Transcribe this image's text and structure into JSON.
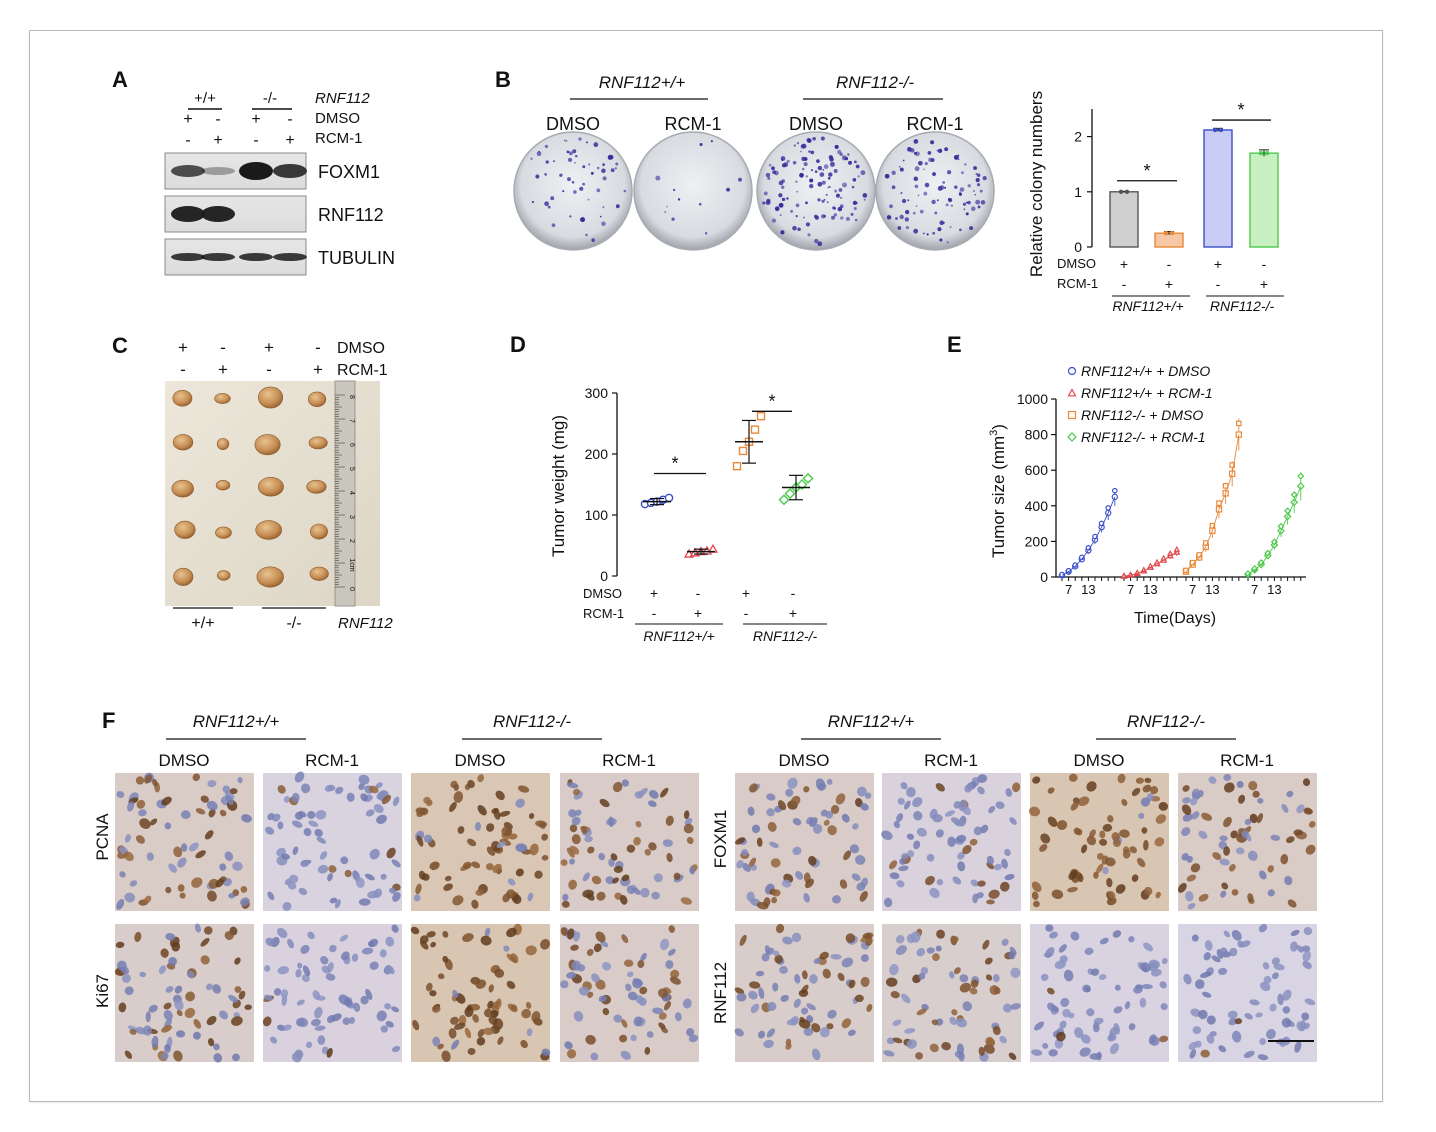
{
  "panel_letters": {
    "A": "A",
    "B": "B",
    "C": "C",
    "D": "D",
    "E": "E",
    "F": "F"
  },
  "colors": {
    "dmso_wt": "#3b4fc8",
    "rcm_wt": "#e0474c",
    "dmso_ko": "#e8893a",
    "rcm_ko": "#4cc94a",
    "bar_dmso_wt": "#cfcfcf",
    "bar_rcm_wt": "#f7c8a6",
    "bar_dmso_ko": "#c9ccf5",
    "bar_rcm_ko": "#c8f0c0",
    "colony_stain": "#3a2c9c",
    "tissue_brown": "#8a5a34",
    "tissue_blue": "#9ea6cf"
  },
  "panelA": {
    "genotype_wt": "+/+",
    "genotype_ko": "-/-",
    "gene_label": "RNF112",
    "dmso_label": "DMSO",
    "rcm_label": "RCM-1",
    "dmso_signs": [
      "+",
      "-",
      "+",
      "-"
    ],
    "rcm_signs": [
      "-",
      "+",
      "-",
      "+"
    ],
    "blot_labels": [
      "FOXM1",
      "RNF112",
      "TUBULIN"
    ]
  },
  "panelB": {
    "group_wt": "RNF112+/+",
    "group_ko": "RNF112-/-",
    "plate_labels": [
      "DMSO",
      "RCM-1",
      "DMSO",
      "RCM-1"
    ],
    "xrow_labels": [
      "DMSO",
      "RCM-1"
    ],
    "dmso_signs": [
      "+",
      "-",
      "+",
      "-"
    ],
    "rcm_signs": [
      "-",
      "+",
      "-",
      "+"
    ],
    "sig": "*",
    "ytick_labels": [
      "0",
      "1",
      "2"
    ]
  },
  "panelC": {
    "dmso_label": "DMSO",
    "rcm_label": "RCM-1",
    "dmso_signs": [
      "+",
      "-",
      "+",
      "-"
    ],
    "rcm_signs": [
      "-",
      "+",
      "-",
      "+"
    ],
    "genotype_wt": "+/+",
    "genotype_ko": "-/-",
    "gene_label": "RNF112",
    "ruler_labels": [
      "8",
      "7",
      "6",
      "5",
      "4",
      "3",
      "2",
      "1cm",
      "0"
    ]
  },
  "panelD": {
    "xrow_labels": [
      "DMSO",
      "RCM-1"
    ],
    "dmso_signs": [
      "+",
      "-",
      "+",
      "-"
    ],
    "rcm_signs": [
      "-",
      "+",
      "-",
      "+"
    ],
    "group_wt": "RNF112+/+",
    "group_ko": "RNF112-/-",
    "sig": "*",
    "ytick_labels": [
      "0",
      "100",
      "200",
      "300"
    ]
  },
  "panelE": {
    "legend": [
      "RNF112+/+ + DMSO",
      "RNF112+/+ + RCM-1",
      "RNF112-/- + DMSO",
      "RNF112-/- + RCM-1"
    ],
    "ytick_labels": [
      "0",
      "200",
      "400",
      "600",
      "800",
      "1000"
    ],
    "xtick_labels": [
      "7",
      "13",
      "7",
      "13",
      "7",
      "13",
      "7",
      "13"
    ]
  },
  "panelF": {
    "groups": [
      "RNF112+/+",
      "RNF112-/-",
      "RNF112+/+",
      "RNF112-/-"
    ],
    "columns": [
      "DMSO",
      "RCM-1",
      "DMSO",
      "RCM-1",
      "DMSO",
      "RCM-1",
      "DMSO",
      "RCM-1"
    ],
    "row_labels": [
      "PCNA",
      "Ki67",
      "FOXM1",
      "RNF112"
    ],
    "stain_intensity": {
      "PCNA": [
        0.55,
        0.08,
        0.85,
        0.5
      ],
      "Ki67": [
        0.45,
        0.1,
        0.9,
        0.5
      ],
      "FOXM1": [
        0.5,
        0.15,
        0.9,
        0.55
      ],
      "RNF112": [
        0.45,
        0.4,
        0.05,
        0.02
      ]
    }
  },
  "chart_data": [
    {
      "type": "bar",
      "panel": "B",
      "xlabel": "",
      "ylabel": "Relative colony numbers",
      "ylim": [
        0,
        2.5
      ],
      "categories": [
        "RNF112+/+ DMSO",
        "RNF112+/+ RCM-1",
        "RNF112-/- DMSO",
        "RNF112-/- RCM-1"
      ],
      "values": [
        1.0,
        0.25,
        2.12,
        1.7
      ],
      "errors": [
        0.01,
        0.03,
        0.03,
        0.06
      ],
      "annotations": [
        {
          "text": "*",
          "between": [
            0,
            1
          ]
        },
        {
          "text": "*",
          "between": [
            2,
            3
          ]
        }
      ]
    },
    {
      "type": "scatter",
      "panel": "D",
      "xlabel": "",
      "ylabel": "Tumor weight (mg)",
      "ylim": [
        0,
        300
      ],
      "categories": [
        "RNF112+/+ DMSO",
        "RNF112+/+ RCM-1",
        "RNF112-/- DMSO",
        "RNF112-/- RCM-1"
      ],
      "points": [
        [
          118,
          120,
          122,
          125,
          128
        ],
        [
          36,
          38,
          40,
          41,
          44
        ],
        [
          180,
          205,
          220,
          240,
          262
        ],
        [
          125,
          135,
          145,
          150,
          160
        ]
      ],
      "means": [
        122,
        40,
        220,
        145
      ],
      "sd": [
        5,
        4,
        35,
        20
      ],
      "annotations": [
        {
          "text": "*",
          "between": [
            0,
            1
          ]
        },
        {
          "text": "*",
          "between": [
            2,
            3
          ]
        }
      ]
    },
    {
      "type": "line",
      "panel": "E",
      "xlabel": "Time(Days)",
      "ylabel": "Tumor size (mm3)",
      "ylim": [
        0,
        1000
      ],
      "series": [
        {
          "name": "RNF112+/+ + DMSO",
          "x": [
            5,
            7,
            9,
            11,
            13,
            15,
            17,
            19,
            21
          ],
          "y": [
            10,
            30,
            60,
            100,
            150,
            210,
            280,
            360,
            450
          ],
          "err": [
            5,
            8,
            10,
            15,
            20,
            25,
            30,
            40,
            50
          ]
        },
        {
          "name": "RNF112+/+ + RCM-1",
          "x": [
            5,
            7,
            9,
            11,
            13,
            15,
            17,
            19,
            21
          ],
          "y": [
            5,
            10,
            20,
            35,
            55,
            75,
            95,
            120,
            140
          ],
          "err": [
            3,
            4,
            6,
            8,
            10,
            12,
            15,
            18,
            22
          ]
        },
        {
          "name": "RNF112-/- + DMSO",
          "x": [
            5,
            7,
            9,
            11,
            13,
            15,
            17,
            19,
            21
          ],
          "y": [
            30,
            70,
            110,
            170,
            260,
            380,
            470,
            580,
            800
          ],
          "err": [
            10,
            15,
            20,
            30,
            40,
            50,
            60,
            70,
            90
          ]
        },
        {
          "name": "RNF112-/- + RCM-1",
          "x": [
            5,
            7,
            9,
            11,
            13,
            15,
            17,
            19,
            21
          ],
          "y": [
            15,
            40,
            70,
            120,
            180,
            260,
            340,
            420,
            510
          ],
          "err": [
            6,
            10,
            15,
            20,
            25,
            35,
            45,
            60,
            80
          ]
        }
      ]
    }
  ]
}
